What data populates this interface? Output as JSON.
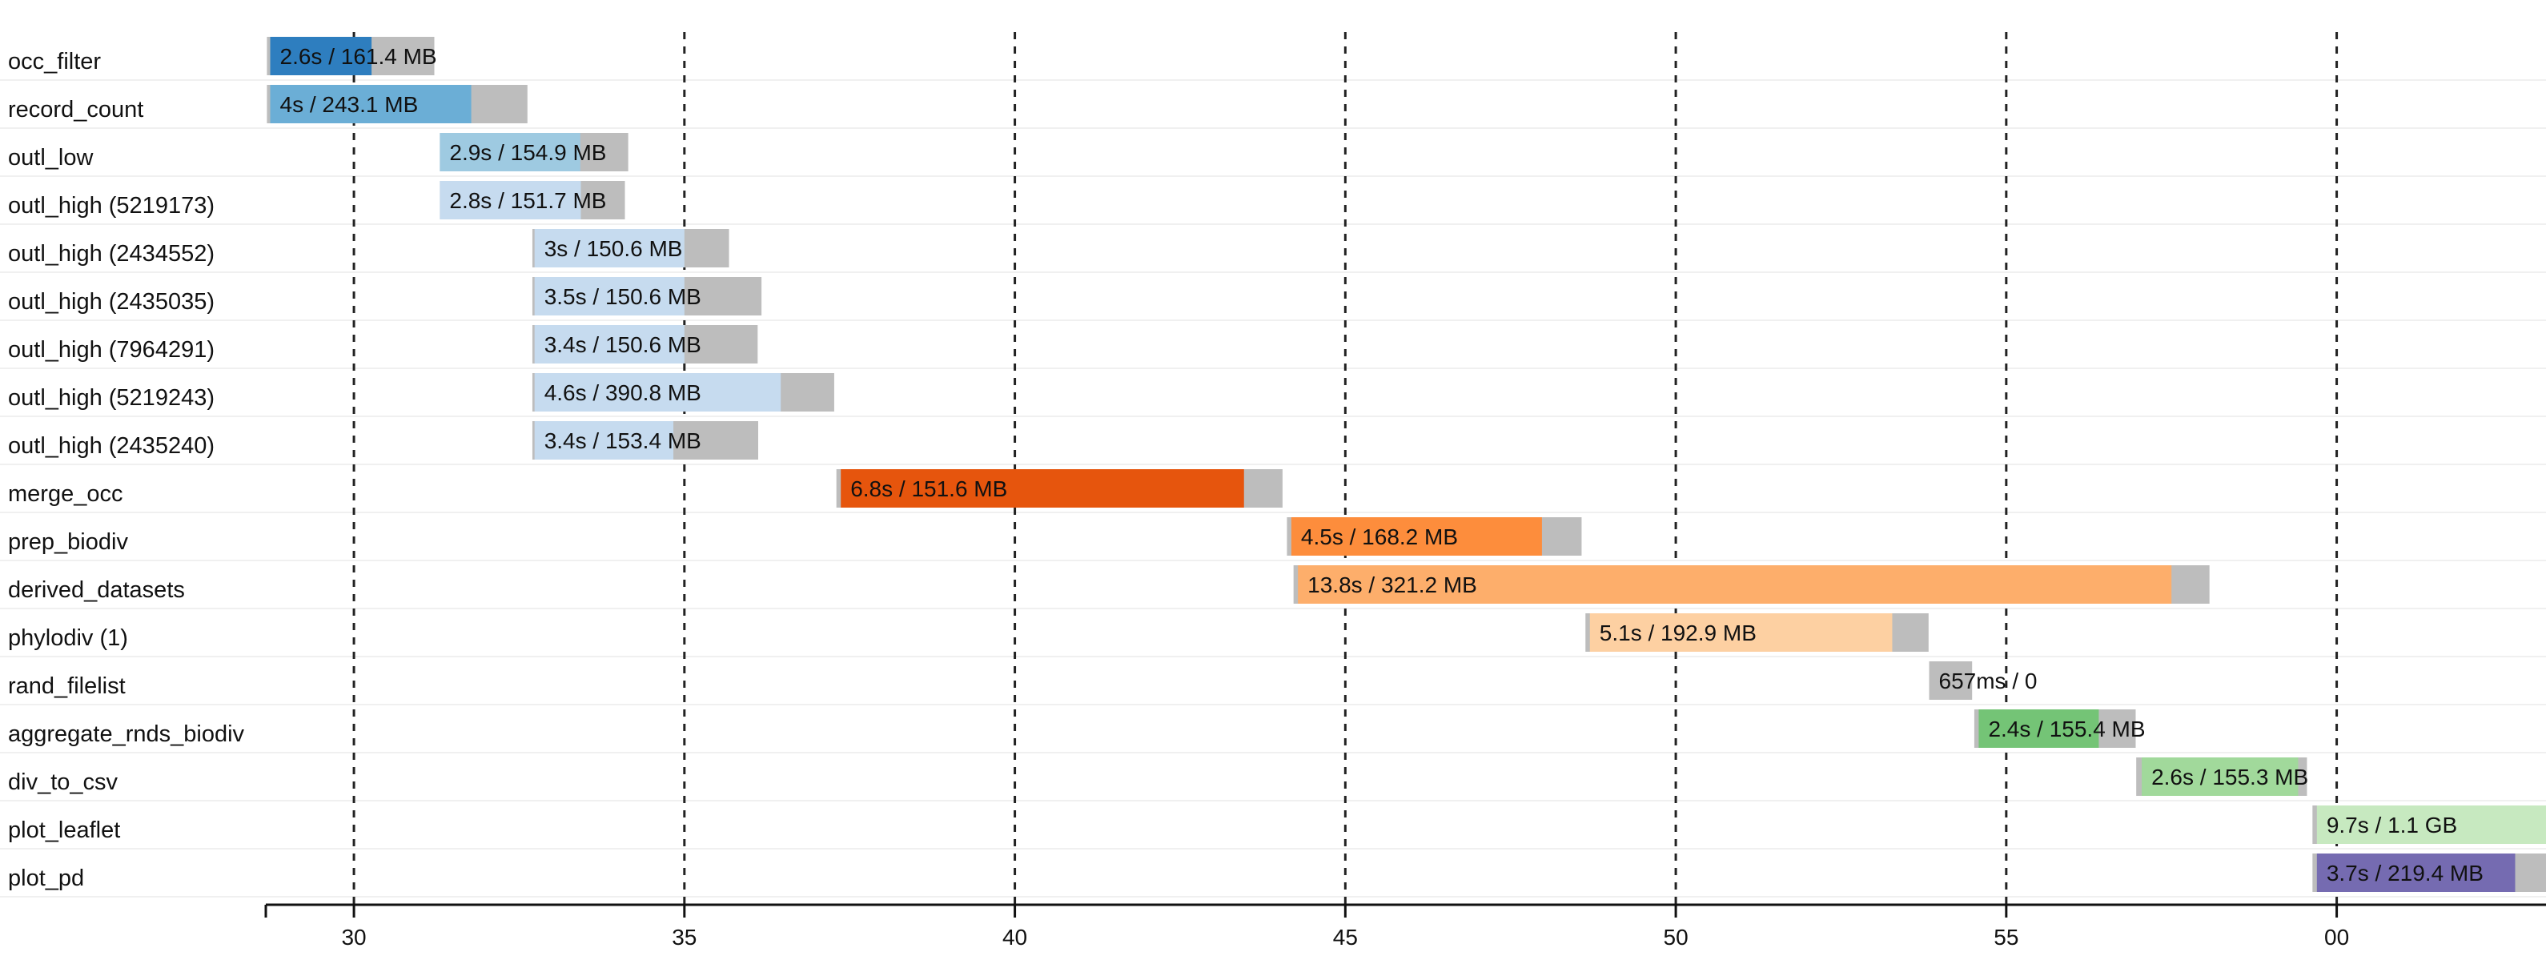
{
  "chart_data": {
    "type": "timeline",
    "x_tick_labels": [
      "30",
      "35",
      "40",
      "45",
      "50",
      "55",
      "00"
    ],
    "x_tick_values_s": [
      0,
      300,
      600,
      900,
      1200,
      1500,
      1800
    ],
    "x_range_s": [
      -80,
      1990
    ],
    "x_axis_unit": "seconds",
    "grid": "vertical dashed lines at each tick",
    "tasks": [
      {
        "name": "occ_filter",
        "submit": -79,
        "start": -76,
        "end": 16.0,
        "complete": 73.0,
        "label": "2.6s / 161.4 MB",
        "color": "#2E7EBF"
      },
      {
        "name": "record_count",
        "submit": -79,
        "start": -76,
        "end": 106.5,
        "complete": 157.5,
        "label": "4s / 243.1 MB",
        "color": "#6BAED6"
      },
      {
        "name": "outl_low",
        "submit": 78,
        "start": 78,
        "end": 205.5,
        "complete": 249.0,
        "label": "2.9s / 154.9 MB",
        "color": "#9ECAE1"
      },
      {
        "name": "outl_high (5219173)",
        "submit": 78,
        "start": 78,
        "end": 206.0,
        "complete": 246.0,
        "label": "2.8s / 151.7 MB",
        "color": "#C6DBEF"
      },
      {
        "name": "outl_high (2434552)",
        "submit": 162,
        "start": 164,
        "end": 300.0,
        "complete": 340.5,
        "label": "3s / 150.6 MB",
        "color": "#C6DBEF"
      },
      {
        "name": "outl_high (2435035)",
        "submit": 162,
        "start": 164,
        "end": 300.0,
        "complete": 370.0,
        "label": "3.5s / 150.6 MB",
        "color": "#C6DBEF"
      },
      {
        "name": "outl_high (7964291)",
        "submit": 162,
        "start": 164,
        "end": 300.0,
        "complete": 366.5,
        "label": "3.4s / 150.6 MB",
        "color": "#C6DBEF"
      },
      {
        "name": "outl_high (5219243)",
        "submit": 162,
        "start": 164,
        "end": 387.5,
        "complete": 436.0,
        "label": "4.6s / 390.8 MB",
        "color": "#C6DBEF"
      },
      {
        "name": "outl_high (2435240)",
        "submit": 162,
        "start": 164,
        "end": 290.0,
        "complete": 367.0,
        "label": "3.4s / 153.4 MB",
        "color": "#C6DBEF"
      },
      {
        "name": "merge_occ",
        "submit": 438,
        "start": 442,
        "end": 808.0,
        "complete": 843.0,
        "label": "6.8s / 151.6 MB",
        "color": "#E6550D"
      },
      {
        "name": "prep_biodiv",
        "submit": 847,
        "start": 851,
        "end": 1078.5,
        "complete": 1114.5,
        "label": "4.5s / 168.2 MB",
        "color": "#FD8D3C"
      },
      {
        "name": "derived_datasets",
        "submit": 853,
        "start": 857,
        "end": 1650.0,
        "complete": 1684.5,
        "label": "13.8s / 321.2 MB",
        "color": "#FDAE6B"
      },
      {
        "name": "phylodiv (1)",
        "submit": 1118,
        "start": 1122,
        "end": 1396.5,
        "complete": 1429.5,
        "label": "5.1s / 192.9 MB",
        "color": "#FDD0A2"
      },
      {
        "name": "rand_filelist",
        "submit": 1430,
        "start": 1430,
        "end": 1430,
        "complete": 1469.0,
        "label": "657ms / 0",
        "color": "#BDBDBD"
      },
      {
        "name": "aggregate_rnds_biodiv",
        "submit": 1471,
        "start": 1475,
        "end": 1584.0,
        "complete": 1617.5,
        "label": "2.4s / 155.4 MB",
        "color": "#74C476"
      },
      {
        "name": "div_to_csv",
        "submit": 1618,
        "start": 1623,
        "end": 1765.0,
        "complete": 1773.0,
        "label": "2.6s / 155.3 MB",
        "color": "#A1D99B"
      },
      {
        "name": "plot_leaflet",
        "submit": 1778,
        "start": 1782,
        "end": 1990,
        "complete": 1990,
        "label": "9.7s / 1.1 GB",
        "color": "#C7E9C0"
      },
      {
        "name": "plot_pd",
        "submit": 1778,
        "start": 1782,
        "end": 1962.0,
        "complete": 2002.0,
        "label": "3.7s / 219.4 MB",
        "color": "#756BB1"
      }
    ]
  }
}
